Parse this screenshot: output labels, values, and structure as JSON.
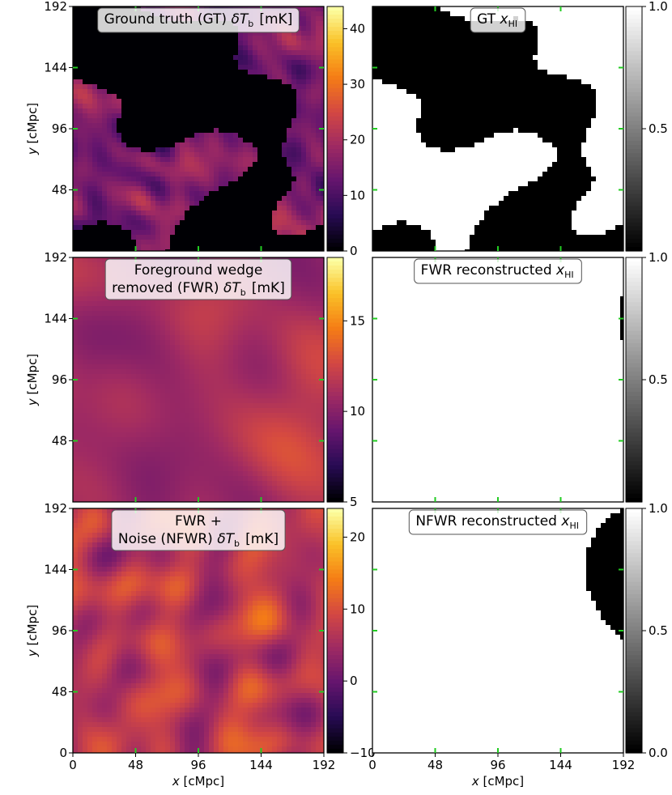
{
  "chart_data": [
    {
      "type": "heatmap",
      "title_lines": [
        "Ground truth (GT) δT_b [mK]"
      ],
      "field": "ionized-bubbles",
      "colormap": "inferno",
      "colorbar_ticks": [
        "0",
        "10",
        "20",
        "30",
        "40"
      ],
      "colorbar_range": [
        0,
        44
      ],
      "ylabel": "y [cMpc]",
      "y_ticks": [
        "48",
        "96",
        "144",
        "192"
      ]
    },
    {
      "type": "heatmap",
      "title_lines": [
        "GT x_HI"
      ],
      "field": "ionized-bubbles-binary",
      "colormap": "gray",
      "colorbar_ticks": [
        "0.5",
        "1.0"
      ],
      "colorbar_range": [
        0,
        1
      ]
    },
    {
      "type": "heatmap",
      "title_lines": [
        "Foreground wedge",
        "removed (FWR) δT_b [mK]"
      ],
      "field": "smooth",
      "colormap": "inferno",
      "colorbar_ticks": [
        "5",
        "10",
        "15"
      ],
      "colorbar_range": [
        5,
        18.5
      ],
      "ylabel": "y [cMpc]",
      "y_ticks": [
        "48",
        "96",
        "144",
        "192"
      ]
    },
    {
      "type": "heatmap",
      "title_lines": [
        "FWR reconstructed x_HI"
      ],
      "field": "large-blobs-binary",
      "colormap": "gray",
      "colorbar_ticks": [
        "0.5",
        "1.0"
      ],
      "colorbar_range": [
        0,
        1
      ]
    },
    {
      "type": "heatmap",
      "title_lines": [
        "FWR +",
        "Noise (NFWR) δT_b [mK]"
      ],
      "field": "noise",
      "colormap": "inferno",
      "colorbar_ticks": [
        "−10",
        "0",
        "10",
        "20"
      ],
      "colorbar_range": [
        -10,
        24
      ],
      "ylabel": "y [cMpc]",
      "xlabel": "x [cMpc]",
      "x_ticks": [
        "0",
        "48",
        "96",
        "144",
        "192"
      ],
      "y_ticks": [
        "0",
        "48",
        "96",
        "144",
        "192"
      ]
    },
    {
      "type": "heatmap",
      "title_lines": [
        "NFWR reconstructed x_HI"
      ],
      "field": "large-blobs-binary",
      "colormap": "gray",
      "colorbar_ticks": [
        "0.0",
        "0.5",
        "1.0"
      ],
      "colorbar_range": [
        0,
        1
      ],
      "xlabel": "x [cMpc]",
      "x_ticks": [
        "0",
        "48",
        "96",
        "144",
        "192"
      ]
    }
  ]
}
